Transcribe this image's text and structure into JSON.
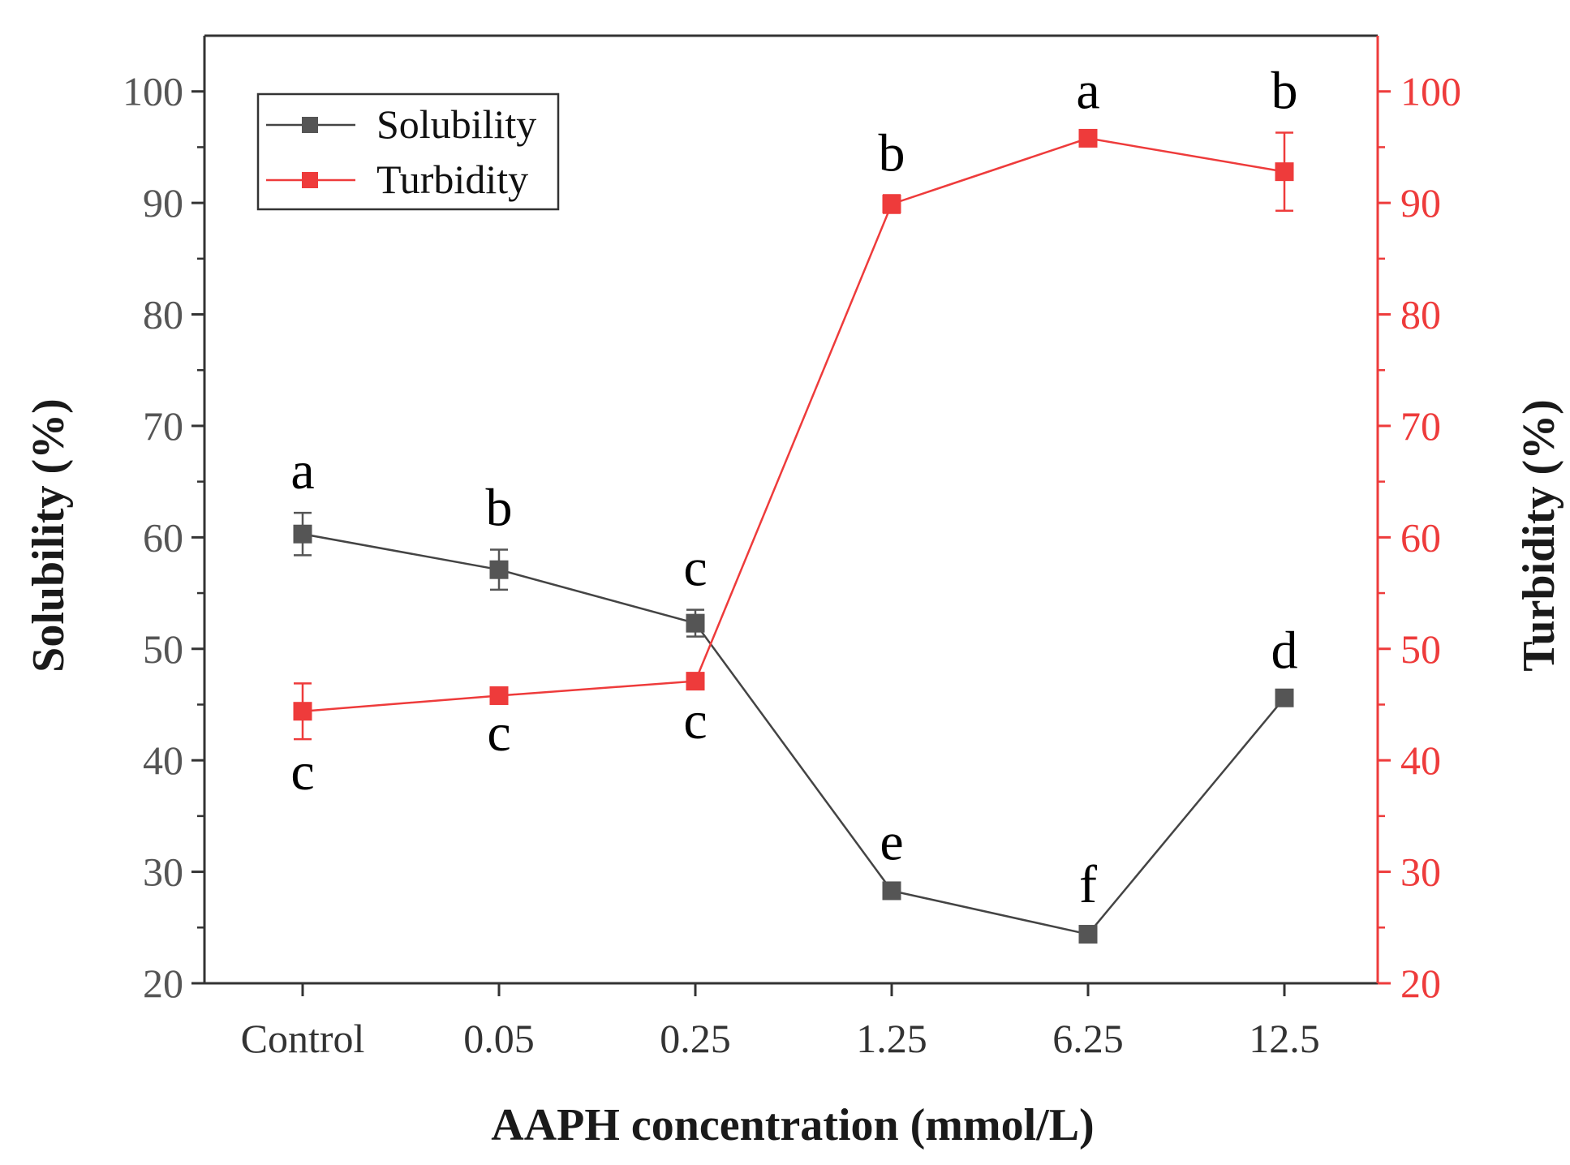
{
  "chart_data": {
    "type": "line",
    "title": "",
    "categories": [
      "Control",
      "0.05",
      "0.25",
      "1.25",
      "6.25",
      "12.5"
    ],
    "xlabel": "AAPH concentration (mmol/L)",
    "ylabel_left": "Solubility (%)",
    "ylabel_right": "Turbidity (%)",
    "ylim": [
      20,
      105
    ],
    "y_ticks": [
      20,
      30,
      40,
      50,
      60,
      70,
      80,
      90,
      100
    ],
    "y_tick_labels": [
      "20",
      "30",
      "40",
      "50",
      "60",
      "70",
      "80",
      "90",
      "100"
    ],
    "legend_position": "top-left",
    "series": [
      {
        "name": "Solubility",
        "axis": "left",
        "color": "#444444",
        "marker_color": "#555555",
        "values": [
          60.3,
          57.1,
          52.3,
          28.3,
          24.4,
          45.6
        ],
        "errors": [
          1.9,
          1.8,
          1.2,
          0.6,
          0.7,
          0.5
        ],
        "letters": [
          "a",
          "b",
          "c",
          "e",
          "f",
          "d"
        ],
        "letter_side": [
          "above",
          "above",
          "above",
          "above",
          "above",
          "above"
        ]
      },
      {
        "name": "Turbidity",
        "axis": "right",
        "color": "#ee3b3b",
        "marker_color": "#ee3b3b",
        "values": [
          44.4,
          45.8,
          47.1,
          89.9,
          95.8,
          92.8
        ],
        "errors": [
          2.5,
          0.4,
          0.6,
          0.8,
          0.5,
          3.5
        ],
        "letters": [
          "c",
          "c",
          "c",
          "b",
          "a",
          "b"
        ],
        "letter_side": [
          "below",
          "below",
          "below",
          "above",
          "above",
          "above"
        ]
      }
    ],
    "axis_colors": {
      "left": "#333333",
      "right": "#ee3b3b",
      "frame": "#333333"
    }
  }
}
